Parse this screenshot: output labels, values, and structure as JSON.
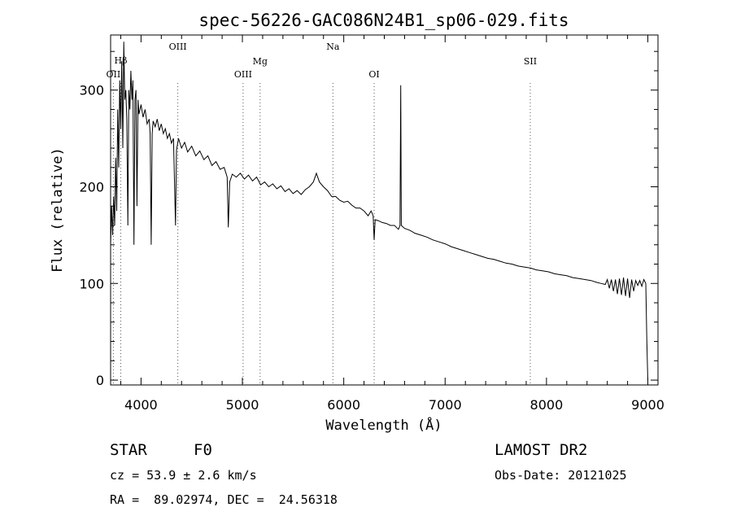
{
  "chart_data": {
    "type": "line",
    "title": "spec-56226-GAC086N24B1_sp06-029.fits",
    "xlabel": "Wavelength (Å)",
    "ylabel": "Flux (relative)",
    "xlim": [
      3700,
      9100
    ],
    "ylim": [
      -5,
      357
    ],
    "xticks": [
      4000,
      5000,
      6000,
      7000,
      8000,
      9000
    ],
    "yticks": [
      0,
      100,
      200,
      300
    ],
    "grid": false,
    "line_color": "#000000",
    "marker_lines": [
      {
        "name": "OII",
        "x": 3727
      },
      {
        "name": "Hβ",
        "x": 3800
      },
      {
        "name": "OIII",
        "x": 4363
      },
      {
        "name": "OIII",
        "x": 5007
      },
      {
        "name": "Mg",
        "x": 5175
      },
      {
        "name": "Na",
        "x": 5893
      },
      {
        "name": "OI",
        "x": 6300
      },
      {
        "name": "SII",
        "x": 7840
      }
    ],
    "spectrum": [
      [
        3700,
        140
      ],
      [
        3710,
        180
      ],
      [
        3720,
        150
      ],
      [
        3730,
        190
      ],
      [
        3740,
        160
      ],
      [
        3750,
        230
      ],
      [
        3760,
        175
      ],
      [
        3770,
        280
      ],
      [
        3780,
        220
      ],
      [
        3790,
        310
      ],
      [
        3800,
        260
      ],
      [
        3810,
        330
      ],
      [
        3820,
        240
      ],
      [
        3830,
        350
      ],
      [
        3840,
        290
      ],
      [
        3850,
        300
      ],
      [
        3860,
        270
      ],
      [
        3870,
        160
      ],
      [
        3880,
        300
      ],
      [
        3890,
        280
      ],
      [
        3900,
        320
      ],
      [
        3910,
        290
      ],
      [
        3920,
        310
      ],
      [
        3930,
        140
      ],
      [
        3940,
        290
      ],
      [
        3950,
        300
      ],
      [
        3960,
        180
      ],
      [
        3970,
        290
      ],
      [
        3980,
        275
      ],
      [
        4000,
        285
      ],
      [
        4020,
        272
      ],
      [
        4040,
        280
      ],
      [
        4060,
        265
      ],
      [
        4080,
        270
      ],
      [
        4090,
        255
      ],
      [
        4100,
        140
      ],
      [
        4110,
        255
      ],
      [
        4120,
        268
      ],
      [
        4140,
        262
      ],
      [
        4160,
        270
      ],
      [
        4180,
        258
      ],
      [
        4200,
        265
      ],
      [
        4220,
        255
      ],
      [
        4240,
        260
      ],
      [
        4260,
        250
      ],
      [
        4280,
        255
      ],
      [
        4300,
        245
      ],
      [
        4320,
        250
      ],
      [
        4340,
        160
      ],
      [
        4350,
        238
      ],
      [
        4370,
        250
      ],
      [
        4400,
        240
      ],
      [
        4430,
        246
      ],
      [
        4460,
        236
      ],
      [
        4500,
        242
      ],
      [
        4540,
        232
      ],
      [
        4580,
        237
      ],
      [
        4620,
        228
      ],
      [
        4660,
        232
      ],
      [
        4700,
        222
      ],
      [
        4740,
        226
      ],
      [
        4780,
        218
      ],
      [
        4820,
        220
      ],
      [
        4850,
        210
      ],
      [
        4861,
        158
      ],
      [
        4875,
        205
      ],
      [
        4900,
        213
      ],
      [
        4940,
        210
      ],
      [
        4980,
        214
      ],
      [
        5020,
        208
      ],
      [
        5060,
        212
      ],
      [
        5100,
        206
      ],
      [
        5140,
        210
      ],
      [
        5180,
        202
      ],
      [
        5220,
        205
      ],
      [
        5260,
        200
      ],
      [
        5300,
        203
      ],
      [
        5340,
        198
      ],
      [
        5380,
        201
      ],
      [
        5420,
        195
      ],
      [
        5460,
        198
      ],
      [
        5500,
        193
      ],
      [
        5540,
        196
      ],
      [
        5580,
        192
      ],
      [
        5620,
        197
      ],
      [
        5660,
        200
      ],
      [
        5700,
        205
      ],
      [
        5730,
        214
      ],
      [
        5760,
        205
      ],
      [
        5800,
        200
      ],
      [
        5840,
        196
      ],
      [
        5880,
        190
      ],
      [
        5920,
        190
      ],
      [
        5960,
        186
      ],
      [
        6000,
        184
      ],
      [
        6040,
        185
      ],
      [
        6080,
        181
      ],
      [
        6120,
        178
      ],
      [
        6160,
        178
      ],
      [
        6200,
        175
      ],
      [
        6240,
        170
      ],
      [
        6270,
        175
      ],
      [
        6290,
        170
      ],
      [
        6300,
        145
      ],
      [
        6310,
        166
      ],
      [
        6340,
        165
      ],
      [
        6380,
        163
      ],
      [
        6420,
        162
      ],
      [
        6460,
        160
      ],
      [
        6500,
        160
      ],
      [
        6540,
        156
      ],
      [
        6555,
        160
      ],
      [
        6562,
        305
      ],
      [
        6568,
        160
      ],
      [
        6600,
        157
      ],
      [
        6650,
        155
      ],
      [
        6700,
        152
      ],
      [
        6760,
        150
      ],
      [
        6820,
        148
      ],
      [
        6880,
        145
      ],
      [
        6940,
        143
      ],
      [
        7000,
        141
      ],
      [
        7060,
        138
      ],
      [
        7120,
        136
      ],
      [
        7180,
        134
      ],
      [
        7240,
        132
      ],
      [
        7300,
        130
      ],
      [
        7360,
        128
      ],
      [
        7420,
        126
      ],
      [
        7480,
        125
      ],
      [
        7540,
        123
      ],
      [
        7600,
        121
      ],
      [
        7660,
        120
      ],
      [
        7720,
        118
      ],
      [
        7780,
        117
      ],
      [
        7840,
        116
      ],
      [
        7900,
        114
      ],
      [
        7960,
        113
      ],
      [
        8020,
        112
      ],
      [
        8080,
        110
      ],
      [
        8140,
        109
      ],
      [
        8200,
        108
      ],
      [
        8260,
        106
      ],
      [
        8320,
        105
      ],
      [
        8380,
        104
      ],
      [
        8440,
        103
      ],
      [
        8500,
        101
      ],
      [
        8540,
        100
      ],
      [
        8580,
        99
      ],
      [
        8600,
        104
      ],
      [
        8620,
        95
      ],
      [
        8640,
        104
      ],
      [
        8660,
        92
      ],
      [
        8680,
        104
      ],
      [
        8700,
        89
      ],
      [
        8720,
        105
      ],
      [
        8740,
        88
      ],
      [
        8760,
        106
      ],
      [
        8780,
        87
      ],
      [
        8800,
        105
      ],
      [
        8820,
        85
      ],
      [
        8840,
        104
      ],
      [
        8860,
        92
      ],
      [
        8880,
        103
      ],
      [
        8900,
        98
      ],
      [
        8920,
        103
      ],
      [
        8940,
        97
      ],
      [
        8960,
        104
      ],
      [
        8980,
        100
      ],
      [
        8990,
        40
      ],
      [
        9000,
        0
      ]
    ]
  },
  "footer": {
    "object_type": "STAR",
    "spectral_class": "F0",
    "survey": "LAMOST DR2",
    "cz": "cz = 53.9 ± 2.6 km/s",
    "obs_date": "Obs-Date: 20121025",
    "radec": "RA =  89.02974, DEC =  24.56318"
  }
}
